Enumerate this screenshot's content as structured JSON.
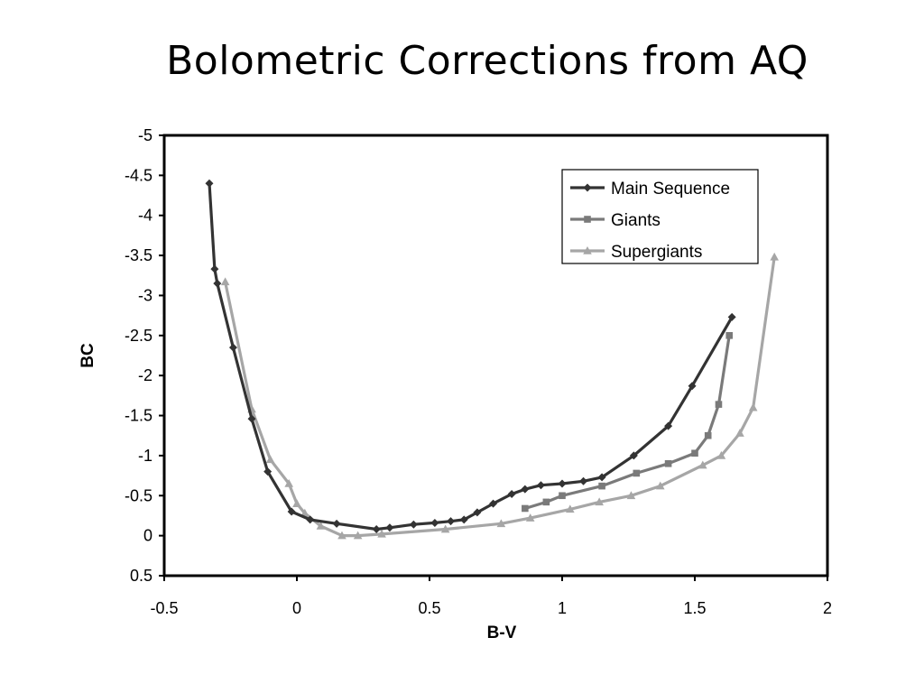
{
  "chart_data": {
    "type": "line",
    "title": "Bolometric Corrections from AQ",
    "xlabel": "B-V",
    "ylabel": "BC",
    "xlim": [
      -0.5,
      2
    ],
    "ylim": [
      0.5,
      -5
    ],
    "y_inverted": true,
    "x_ticks": [
      "-0.5",
      "0",
      "0.5",
      "1",
      "1.5",
      "2"
    ],
    "y_ticks": [
      "-5",
      "-4.5",
      "-4",
      "-3.5",
      "-3",
      "-2.5",
      "-2",
      "-1.5",
      "-1",
      "-0.5",
      "0",
      "0.5"
    ],
    "grid": false,
    "legend_position": "top-right",
    "series": [
      {
        "name": "Main Sequence",
        "color": "#333333",
        "marker": "diamond",
        "points": [
          [
            -0.33,
            -4.4
          ],
          [
            -0.31,
            -3.33
          ],
          [
            -0.3,
            -3.15
          ],
          [
            -0.24,
            -2.35
          ],
          [
            -0.17,
            -1.46
          ],
          [
            -0.11,
            -0.8
          ],
          [
            -0.02,
            -0.3
          ],
          [
            0.05,
            -0.2
          ],
          [
            0.15,
            -0.15
          ],
          [
            0.3,
            -0.08
          ],
          [
            0.35,
            -0.1
          ],
          [
            0.44,
            -0.14
          ],
          [
            0.52,
            -0.16
          ],
          [
            0.58,
            -0.18
          ],
          [
            0.63,
            -0.2
          ],
          [
            0.68,
            -0.29
          ],
          [
            0.74,
            -0.4
          ],
          [
            0.81,
            -0.52
          ],
          [
            0.86,
            -0.58
          ],
          [
            0.92,
            -0.63
          ],
          [
            1.0,
            -0.65
          ],
          [
            1.08,
            -0.68
          ],
          [
            1.15,
            -0.73
          ],
          [
            1.27,
            -1.0
          ],
          [
            1.4,
            -1.37
          ],
          [
            1.49,
            -1.87
          ],
          [
            1.64,
            -2.73
          ]
        ]
      },
      {
        "name": "Giants",
        "color": "#7a7a7a",
        "marker": "square",
        "points": [
          [
            0.86,
            -0.34
          ],
          [
            0.94,
            -0.42
          ],
          [
            1.0,
            -0.5
          ],
          [
            1.15,
            -0.62
          ],
          [
            1.28,
            -0.78
          ],
          [
            1.4,
            -0.9
          ],
          [
            1.5,
            -1.03
          ],
          [
            1.55,
            -1.25
          ],
          [
            1.59,
            -1.64
          ],
          [
            1.63,
            -2.5
          ]
        ]
      },
      {
        "name": "Supergiants",
        "color": "#a6a6a6",
        "marker": "triangle",
        "points": [
          [
            -0.27,
            -3.17
          ],
          [
            -0.17,
            -1.58
          ],
          [
            -0.1,
            -0.95
          ],
          [
            -0.03,
            -0.65
          ],
          [
            0.0,
            -0.4
          ],
          [
            0.03,
            -0.28
          ],
          [
            0.09,
            -0.12
          ],
          [
            0.17,
            0.0
          ],
          [
            0.23,
            0.0
          ],
          [
            0.32,
            -0.02
          ],
          [
            0.56,
            -0.08
          ],
          [
            0.77,
            -0.15
          ],
          [
            0.88,
            -0.22
          ],
          [
            1.03,
            -0.33
          ],
          [
            1.14,
            -0.42
          ],
          [
            1.26,
            -0.5
          ],
          [
            1.37,
            -0.62
          ],
          [
            1.53,
            -0.88
          ],
          [
            1.6,
            -1.0
          ],
          [
            1.67,
            -1.28
          ],
          [
            1.72,
            -1.6
          ],
          [
            1.8,
            -3.48
          ]
        ]
      }
    ]
  }
}
